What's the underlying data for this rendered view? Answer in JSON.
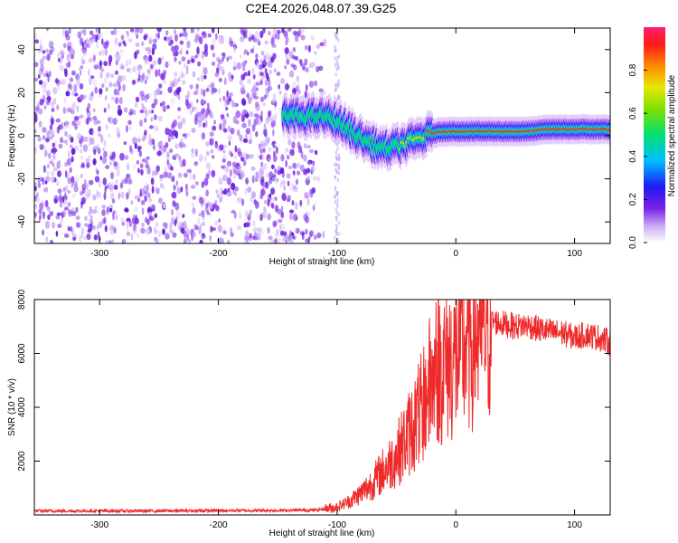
{
  "title": "C2E4.2026.048.07.39.G25",
  "chart_data": [
    {
      "type": "heatmap",
      "name": "spectrogram",
      "xlabel": "Height of straight line (km)",
      "ylabel": "Frequency (Hz)",
      "xlim": [
        -355,
        130
      ],
      "ylim": [
        -50,
        50
      ],
      "xticks": [
        "-300",
        "-200",
        "-100",
        "0",
        "100"
      ],
      "yticks": [
        "-40",
        "-20",
        "0",
        "20",
        "40"
      ],
      "colorbar": {
        "label": "Normalized spectral amplitude",
        "range": [
          0,
          1
        ],
        "ticks": [
          "0.0",
          "0.2",
          "0.4",
          "0.6",
          "0.8"
        ]
      },
      "noise_region_x": [
        -355,
        -100
      ],
      "ridge": {
        "x": [
          -145,
          -130,
          -120,
          -110,
          -100,
          -90,
          -80,
          -70,
          -60,
          -50,
          -40,
          -30,
          -20,
          -10,
          0,
          20,
          40,
          60,
          80,
          100,
          130
        ],
        "freq": [
          9,
          9,
          9,
          9,
          7,
          3,
          -1,
          -4,
          -6,
          -5,
          -3,
          -1,
          1,
          2,
          2,
          2,
          2,
          2,
          3,
          3,
          3
        ],
        "amplitude": [
          0.35,
          0.4,
          0.45,
          0.45,
          0.4,
          0.45,
          0.5,
          0.5,
          0.5,
          0.55,
          0.7,
          0.8,
          0.85,
          0.85,
          0.9,
          0.9,
          0.9,
          0.85,
          0.9,
          0.9,
          0.85
        ]
      }
    },
    {
      "type": "line",
      "name": "snr",
      "xlabel": "Height of straight line (km)",
      "ylabel": "SNR (10 * v/v)",
      "xlim": [
        -355,
        130
      ],
      "ylim": [
        0,
        8000
      ],
      "xticks": [
        "-300",
        "-200",
        "-100",
        "0",
        "100"
      ],
      "yticks": [
        "2000",
        "4000",
        "6000",
        "8000"
      ],
      "color": "#ee2a2a",
      "series": [
        {
          "name": "SNR",
          "x": [
            -355,
            -300,
            -250,
            -200,
            -150,
            -120,
            -110,
            -100,
            -90,
            -80,
            -70,
            -60,
            -50,
            -40,
            -30,
            -25,
            -20,
            -15,
            -10,
            -5,
            0,
            10,
            20,
            30,
            40,
            50,
            60,
            70,
            80,
            90,
            100,
            110,
            120,
            130
          ],
          "y": [
            150,
            150,
            150,
            160,
            170,
            180,
            220,
            300,
            500,
            800,
            1200,
            1700,
            2200,
            3000,
            3800,
            4500,
            5000,
            5500,
            5600,
            5700,
            5800,
            6400,
            6900,
            7200,
            7100,
            7000,
            7050,
            6900,
            6800,
            6750,
            6600,
            6700,
            6600,
            6400
          ]
        }
      ]
    }
  ]
}
